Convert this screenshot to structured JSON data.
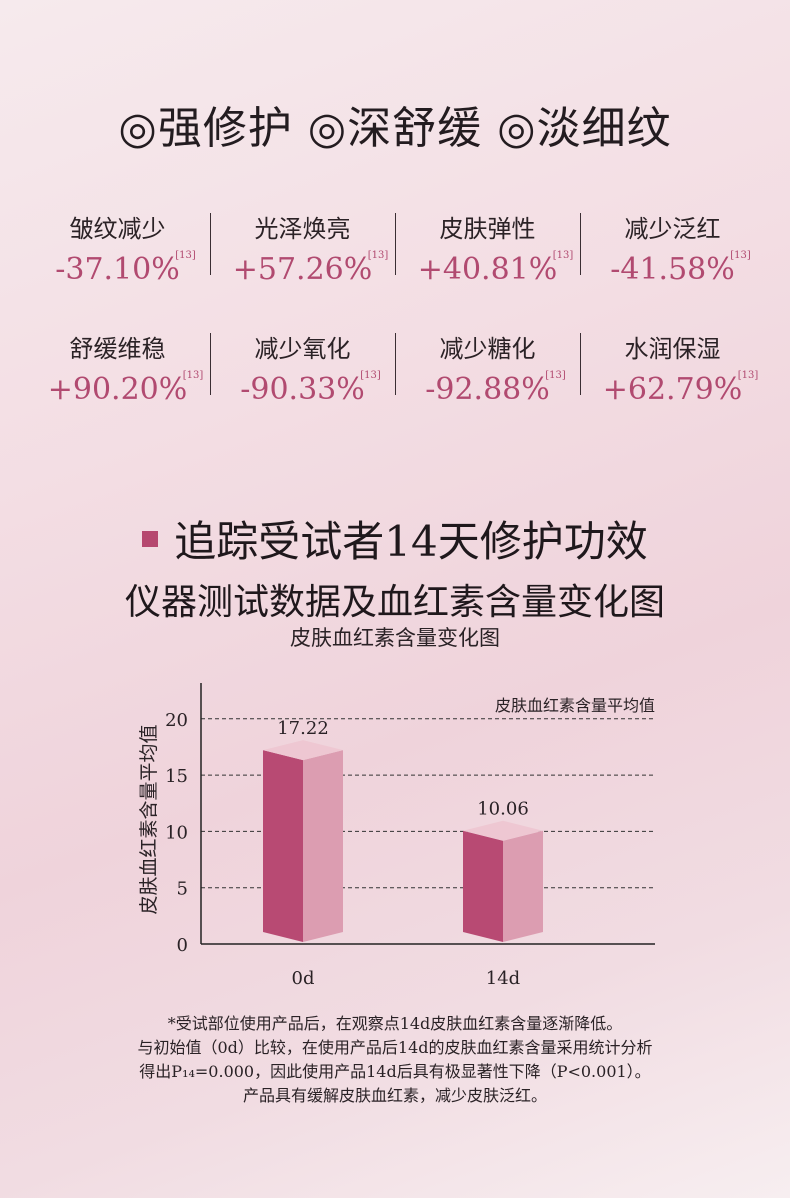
{
  "headline": "◎强修护 ◎深舒缓 ◎淡细纹",
  "stats": [
    [
      {
        "label": "皱纹减少",
        "value": "-37.10%",
        "ref": "[13]"
      },
      {
        "label": "光泽焕亮",
        "value": "+57.26%",
        "ref": "[13]"
      },
      {
        "label": "皮肤弹性",
        "value": "+40.81%",
        "ref": "[13]"
      },
      {
        "label": "减少泛红",
        "value": "-41.58%",
        "ref": "[13]"
      }
    ],
    [
      {
        "label": "舒缓维稳",
        "value": "+90.20%",
        "ref": "[13]"
      },
      {
        "label": "减少氧化",
        "value": "-90.33%",
        "ref": "[13]"
      },
      {
        "label": "减少糖化",
        "value": "-92.88%",
        "ref": "[13]"
      },
      {
        "label": "水润保湿",
        "value": "+62.79%",
        "ref": "[13]"
      }
    ]
  ],
  "section": {
    "title_line1": "追踪受试者14天修护功效",
    "title_line2": "仪器测试数据及血红素含量变化图"
  },
  "chart_data": {
    "type": "bar",
    "title": "皮肤血红素含量变化图",
    "categories": [
      "0d",
      "14d"
    ],
    "values": [
      17.22,
      10.06
    ],
    "value_labels": [
      "17.22",
      "10.06"
    ],
    "ylabel": "皮肤血红素含量平均值",
    "legend": "皮肤血红素含量平均值",
    "legend_position": "top-right",
    "ylim": [
      0,
      23
    ],
    "yticks": [
      0,
      5,
      10,
      15,
      20
    ],
    "grid": true,
    "colors": {
      "front": "#b84a73",
      "side": "#dc9db1",
      "top": "#eec7d2"
    }
  },
  "footnote": [
    "*受试部位使用产品后，在观察点14d皮肤血红素含量逐渐降低。",
    "与初始值（0d）比较，在使用产品后14d的皮肤血红素含量采用统计分析",
    "得出P₁₄=0.000，因此使用产品14d后具有极显著性下降（P<0.001）。",
    "产品具有缓解皮肤血红素，减少皮肤泛红。"
  ]
}
